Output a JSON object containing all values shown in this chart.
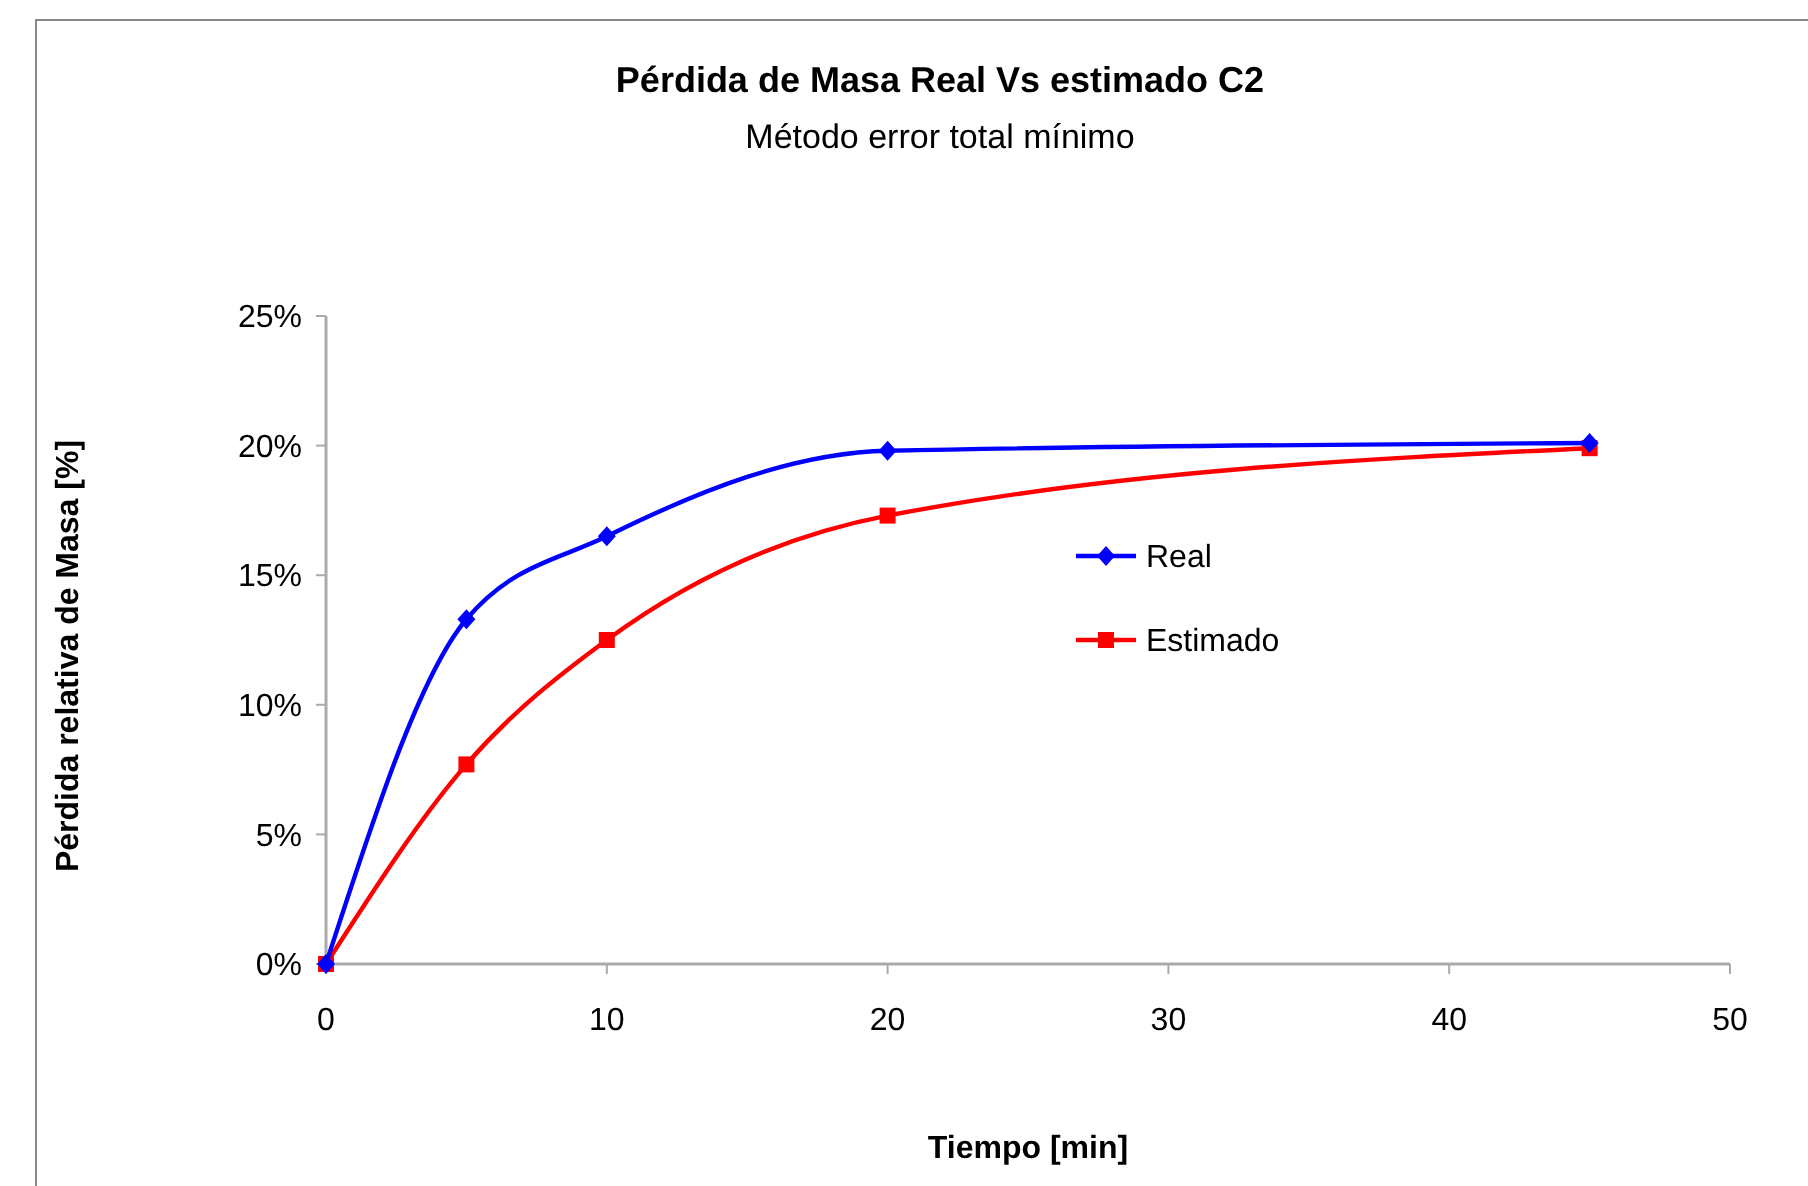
{
  "chart_data": {
    "type": "line",
    "title": "Pérdida de Masa Real Vs estimado C2",
    "subtitle": "Método error total mínimo",
    "xlabel": "Tiempo [min]",
    "ylabel": "Pérdida relativa de Masa [%]",
    "x": [
      0,
      5,
      10,
      20,
      45
    ],
    "series": [
      {
        "name": "Real",
        "color": "#0000ff",
        "marker": "diamond",
        "values": [
          0,
          13.3,
          16.5,
          19.8,
          20.1
        ]
      },
      {
        "name": "Estimado",
        "color": "#ff0000",
        "marker": "square",
        "values": [
          0,
          7.7,
          12.5,
          17.3,
          19.9
        ]
      }
    ],
    "xlim": [
      0,
      50
    ],
    "xticks": [
      0,
      10,
      20,
      30,
      40,
      50
    ],
    "ylim": [
      0,
      25
    ],
    "yticks": [
      {
        "value": 0,
        "label": "0%"
      },
      {
        "value": 5,
        "label": "5%"
      },
      {
        "value": 10,
        "label": "10%"
      },
      {
        "value": 15,
        "label": "15%"
      },
      {
        "value": 20,
        "label": "20%"
      },
      {
        "value": 25,
        "label": "25%"
      }
    ],
    "legend": "right",
    "line_style": "solid"
  }
}
